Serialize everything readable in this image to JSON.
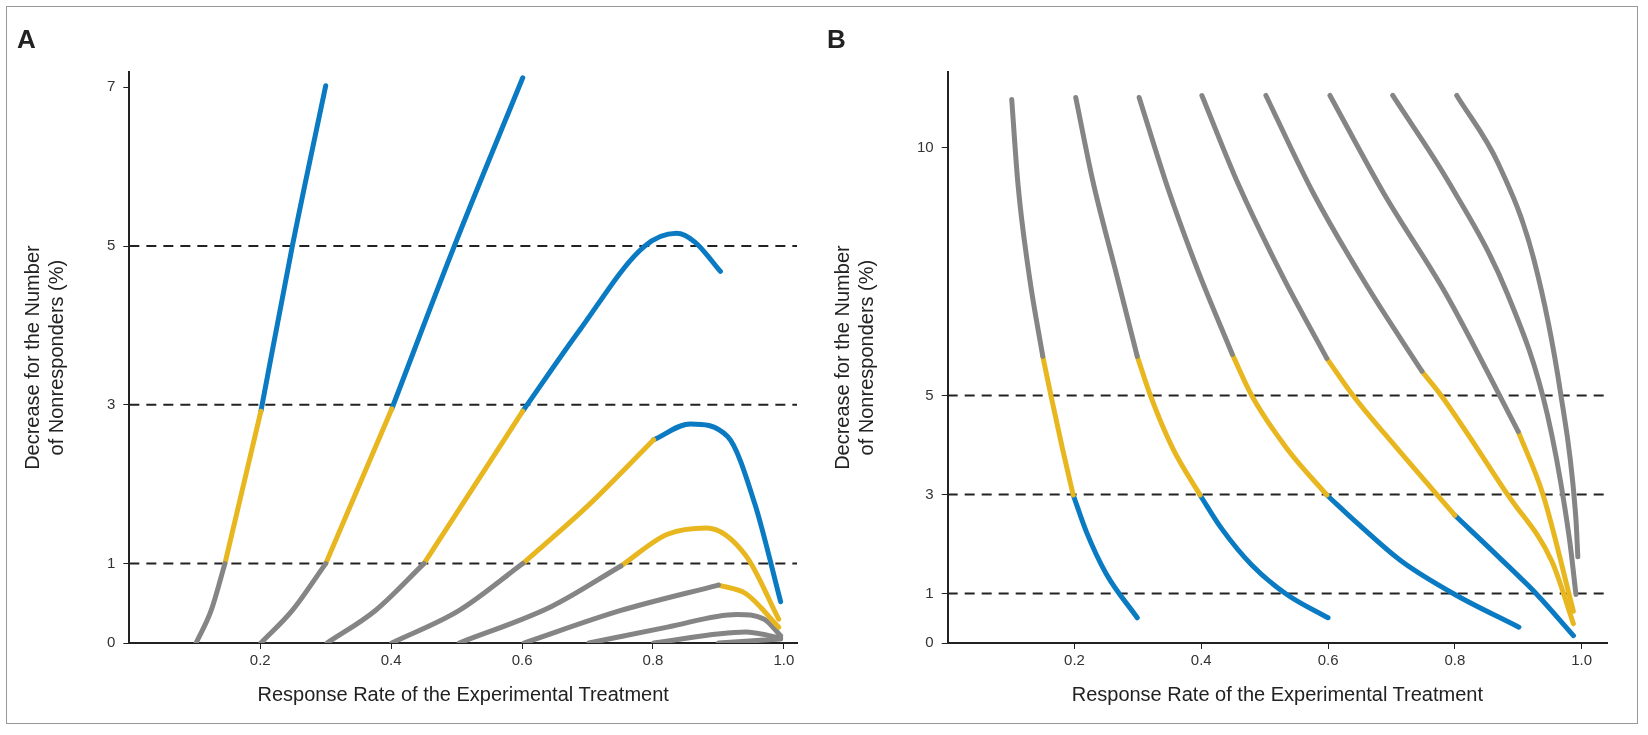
{
  "chart_data": [
    {
      "type": "line",
      "title": "A",
      "xlabel": "Response Rate of the Experimental Treatment",
      "ylabel": "Decrease for the Number\nof Nonresponders (%)",
      "xlim": [
        0,
        1.02
      ],
      "ylim": [
        0,
        7.19
      ],
      "xticks": [
        0.2,
        0.4,
        0.6,
        0.8,
        {
          "value": 1,
          "label": "1.0"
        }
      ],
      "yticks": [
        0,
        1,
        3,
        5,
        7
      ],
      "grid": false,
      "legend": false,
      "marker": "none",
      "line_style": "solid",
      "ref_lines": [
        {
          "axis": "y",
          "value": 1,
          "color": "#222222",
          "line_style": "dashed"
        },
        {
          "axis": "y",
          "value": 3,
          "color": "#222222",
          "line_style": "dashed"
        },
        {
          "axis": "y",
          "value": 5,
          "color": "#222222",
          "line_style": "dashed"
        }
      ],
      "series": [
        {
          "color": "#858585",
          "x": [
            0.102,
            0.125,
            0.146
          ],
          "values": [
            0,
            0.41,
            1.0
          ]
        },
        {
          "color": "#e8b720",
          "x": [
            0.146,
            0.201
          ],
          "values": [
            1.0,
            2.92
          ]
        },
        {
          "color": "#0a7bc2",
          "x": [
            0.201,
            0.249,
            0.3
          ],
          "values": [
            2.92,
            5.0,
            7.02
          ]
        },
        {
          "color": "#858585",
          "x": [
            0.201,
            0.249,
            0.3
          ],
          "values": [
            0,
            0.41,
            1.0
          ]
        },
        {
          "color": "#e8b720",
          "x": [
            0.3,
            0.401
          ],
          "values": [
            1.0,
            2.95
          ]
        },
        {
          "color": "#0a7bc2",
          "x": [
            0.401,
            0.496,
            0.601
          ],
          "values": [
            2.95,
            4.99,
            7.12
          ]
        },
        {
          "color": "#858585",
          "x": [
            0.302,
            0.376,
            0.45
          ],
          "values": [
            0,
            0.41,
            1.0
          ]
        },
        {
          "color": "#e8b720",
          "x": [
            0.45,
            0.601
          ],
          "values": [
            1.0,
            2.92
          ]
        },
        {
          "color": "#0a7bc2",
          "x": [
            0.601,
            0.687,
            0.786,
            0.836,
            0.864,
            0.903
          ],
          "values": [
            2.92,
            3.93,
            4.99,
            5.16,
            5.05,
            4.68
          ]
        },
        {
          "color": "#858585",
          "x": [
            0.401,
            0.504,
            0.601
          ],
          "values": [
            0,
            0.41,
            1.0
          ]
        },
        {
          "color": "#e8b720",
          "x": [
            0.601,
            0.702,
            0.801
          ],
          "values": [
            1.0,
            1.74,
            2.56
          ]
        },
        {
          "color": "#0a7bc2",
          "x": [
            0.801,
            0.857,
            0.914,
            0.956,
            0.995
          ],
          "values": [
            2.56,
            2.76,
            2.6,
            1.74,
            0.52
          ]
        },
        {
          "color": "#858585",
          "x": [
            0.504,
            0.645,
            0.751
          ],
          "values": [
            0,
            0.46,
            0.97
          ]
        },
        {
          "color": "#e8b720",
          "x": [
            0.751,
            0.822,
            0.882,
            0.942,
            0.992
          ],
          "values": [
            0.97,
            1.37,
            1.45,
            1.1,
            0.3
          ]
        },
        {
          "color": "#858585",
          "x": [
            0.603,
            0.751,
            0.9
          ],
          "values": [
            0,
            0.41,
            0.73
          ]
        },
        {
          "color": "#e8b720",
          "x": [
            0.9,
            0.942,
            0.992
          ],
          "values": [
            0.73,
            0.62,
            0.2
          ]
        },
        {
          "color": "#858585",
          "x": [
            0.702,
            0.822,
            0.928,
            0.97,
            0.995
          ],
          "values": [
            0,
            0.2,
            0.36,
            0.3,
            0.09
          ]
        },
        {
          "color": "#858585",
          "x": [
            0.801,
            0.942,
            0.995
          ],
          "values": [
            0,
            0.14,
            0.06
          ]
        },
        {
          "color": "#858585",
          "x": [
            0.9,
            0.995
          ],
          "values": [
            0,
            0.05
          ]
        }
      ]
    },
    {
      "type": "line",
      "title": "B",
      "xlabel": "Response Rate of the Experimental Treatment",
      "ylabel": "Decrease for the Number\nof Nonresponders (%)",
      "xlim": [
        0,
        1.04
      ],
      "ylim": [
        0,
        11.53
      ],
      "xticks": [
        0.2,
        0.4,
        0.6,
        0.8,
        {
          "value": 1,
          "label": "1.0"
        }
      ],
      "yticks": [
        0,
        1,
        3,
        5,
        10
      ],
      "grid": false,
      "legend": false,
      "marker": "none",
      "line_style": "solid",
      "ref_lines": [
        {
          "axis": "y",
          "value": 1,
          "color": "#222222",
          "line_style": "dashed"
        },
        {
          "axis": "y",
          "value": 3,
          "color": "#222222",
          "line_style": "dashed"
        },
        {
          "axis": "y",
          "value": 5,
          "color": "#222222",
          "line_style": "dashed"
        }
      ],
      "series": [
        {
          "color": "#858585",
          "x": [
            0.101,
            0.111,
            0.129,
            0.15
          ],
          "values": [
            10.98,
            9.25,
            7.39,
            5.79
          ]
        },
        {
          "color": "#e8b720",
          "x": [
            0.15,
            0.163,
            0.181,
            0.198
          ],
          "values": [
            5.79,
            4.99,
            3.93,
            2.99
          ]
        },
        {
          "color": "#0a7bc2",
          "x": [
            0.198,
            0.219,
            0.25,
            0.299
          ],
          "values": [
            2.99,
            2.24,
            1.4,
            0.51
          ]
        },
        {
          "color": "#858585",
          "x": [
            0.202,
            0.229,
            0.264,
            0.299
          ],
          "values": [
            11.02,
            9.33,
            7.56,
            5.79
          ]
        },
        {
          "color": "#e8b720",
          "x": [
            0.299,
            0.32,
            0.355,
            0.398
          ],
          "values": [
            5.79,
            4.99,
            3.93,
            2.99
          ]
        },
        {
          "color": "#0a7bc2",
          "x": [
            0.398,
            0.431,
            0.48,
            0.535,
            0.6
          ],
          "values": [
            2.99,
            2.33,
            1.57,
            0.98,
            0.51
          ]
        },
        {
          "color": "#858585",
          "x": [
            0.302,
            0.348,
            0.396,
            0.449
          ],
          "values": [
            11.02,
            9.16,
            7.48,
            5.83
          ]
        },
        {
          "color": "#e8b720",
          "x": [
            0.449,
            0.48,
            0.535,
            0.598
          ],
          "values": [
            5.83,
            4.99,
            3.93,
            2.99
          ]
        },
        {
          "color": "#0a7bc2",
          "x": [
            0.598,
            0.647,
            0.716,
            0.8,
            0.901
          ],
          "values": [
            2.99,
            2.41,
            1.65,
            0.98,
            0.32
          ]
        },
        {
          "color": "#858585",
          "x": [
            0.401,
            0.459,
            0.529,
            0.598
          ],
          "values": [
            11.06,
            9.25,
            7.39,
            5.75
          ]
        },
        {
          "color": "#e8b720",
          "x": [
            0.598,
            0.64,
            0.709,
            0.8
          ],
          "values": [
            5.75,
            4.99,
            3.93,
            2.58
          ]
        },
        {
          "color": "#0a7bc2",
          "x": [
            0.8,
            0.869,
            0.928,
            0.987
          ],
          "values": [
            2.58,
            1.74,
            1.0,
            0.15
          ]
        },
        {
          "color": "#858585",
          "x": [
            0.502,
            0.577,
            0.661,
            0.748
          ],
          "values": [
            11.06,
            9.08,
            7.22,
            5.49
          ]
        },
        {
          "color": "#e8b720",
          "x": [
            0.748,
            0.779,
            0.883,
            0.953,
            0.987
          ],
          "values": [
            5.49,
            4.99,
            3.0,
            1.65,
            0.39
          ]
        },
        {
          "color": "#858585",
          "x": [
            0.603,
            0.688,
            0.786,
            0.9
          ],
          "values": [
            11.06,
            9.08,
            7.05,
            4.27
          ]
        },
        {
          "color": "#e8b720",
          "x": [
            0.9,
            0.939,
            0.987
          ],
          "values": [
            4.27,
            3.0,
            0.64
          ]
        },
        {
          "color": "#858585",
          "x": [
            0.702,
            0.793,
            0.883,
            0.946,
            0.981,
            0.991
          ],
          "values": [
            11.06,
            9.25,
            7.05,
            4.61,
            2.08,
            0.98
          ]
        },
        {
          "color": "#858585",
          "x": [
            0.803,
            0.869,
            0.925,
            0.967,
            0.991,
            0.994
          ],
          "values": [
            11.06,
            9.67,
            7.73,
            5.03,
            2.5,
            1.74
          ]
        }
      ]
    }
  ]
}
